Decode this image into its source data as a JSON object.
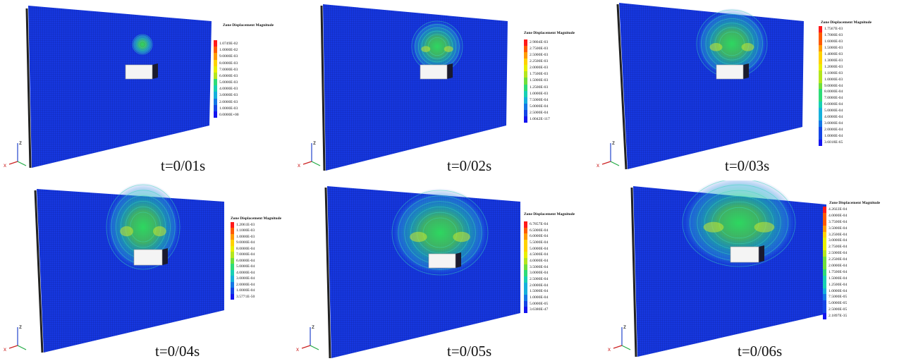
{
  "legend_title": "Zone Displacement Magnitude",
  "legend_colors": [
    "#ff1a1a",
    "#ff5a00",
    "#ff9a00",
    "#ffd200",
    "#e8f000",
    "#b4e61e",
    "#6ee03c",
    "#2edc78",
    "#18d0b4",
    "#16b0dc",
    "#1478e6",
    "#1446e6",
    "#1414f0"
  ],
  "axis_labels": {
    "z": "z",
    "x": "x"
  },
  "panels": [
    {
      "time": "t=0/01s",
      "legend": [
        "1.0749E-02",
        "1.0000E-02",
        "9.0000E-03",
        "8.0000E-03",
        "7.0000E-03",
        "6.0000E-03",
        "5.0000E-03",
        "4.0000E-03",
        "3.0000E-03",
        "2.0000E-03",
        "1.0000E-03",
        "0.0000E+00"
      ]
    },
    {
      "time": "t=0/02s",
      "legend": [
        "2.9804E-03",
        "2.7500E-03",
        "2.5000E-03",
        "2.2500E-03",
        "2.0000E-03",
        "1.7500E-03",
        "1.5000E-03",
        "1.2500E-03",
        "1.0000E-03",
        "7.5000E-04",
        "5.0000E-04",
        "2.5000E-04",
        "1.0042E-117"
      ]
    },
    {
      "time": "t=0/03s",
      "legend": [
        "1.7567E-03",
        "1.7000E-03",
        "1.6000E-03",
        "1.5000E-03",
        "1.4000E-03",
        "1.3000E-03",
        "1.2000E-03",
        "1.1000E-03",
        "1.0000E-03",
        "9.0000E-04",
        "8.0000E-04",
        "7.0000E-04",
        "6.0000E-04",
        "5.0000E-04",
        "4.0000E-04",
        "3.0000E-04",
        "2.0000E-04",
        "1.0000E-04",
        "3.6018E-65"
      ]
    },
    {
      "time": "t=0/04s",
      "legend": [
        "1.2061E-03",
        "1.1000E-03",
        "1.0000E-03",
        "9.0000E-04",
        "8.0000E-04",
        "7.0000E-04",
        "6.0000E-04",
        "5.0000E-04",
        "4.0000E-04",
        "3.0000E-04",
        "2.0000E-04",
        "1.0000E-04",
        "3.5771E-50"
      ]
    },
    {
      "time": "t=0/05s",
      "legend": [
        "6.7857E-04",
        "6.5000E-04",
        "6.0000E-04",
        "5.5000E-04",
        "5.0000E-04",
        "4.5000E-04",
        "4.0000E-04",
        "3.5000E-04",
        "3.0000E-04",
        "2.5000E-04",
        "2.0000E-04",
        "1.5000E-04",
        "1.0000E-04",
        "5.0000E-05",
        "3.6380E-47"
      ]
    },
    {
      "time": "t=0/06s",
      "legend": [
        "4.2022E-04",
        "4.0000E-04",
        "3.7500E-04",
        "3.5000E-04",
        "3.2500E-04",
        "3.0000E-04",
        "2.7500E-04",
        "2.5000E-04",
        "2.2500E-04",
        "2.0000E-04",
        "1.7500E-04",
        "1.5000E-04",
        "1.2500E-04",
        "1.0000E-04",
        "7.5000E-05",
        "5.0000E-05",
        "2.5000E-05",
        "2.1897E-35"
      ]
    }
  ]
}
